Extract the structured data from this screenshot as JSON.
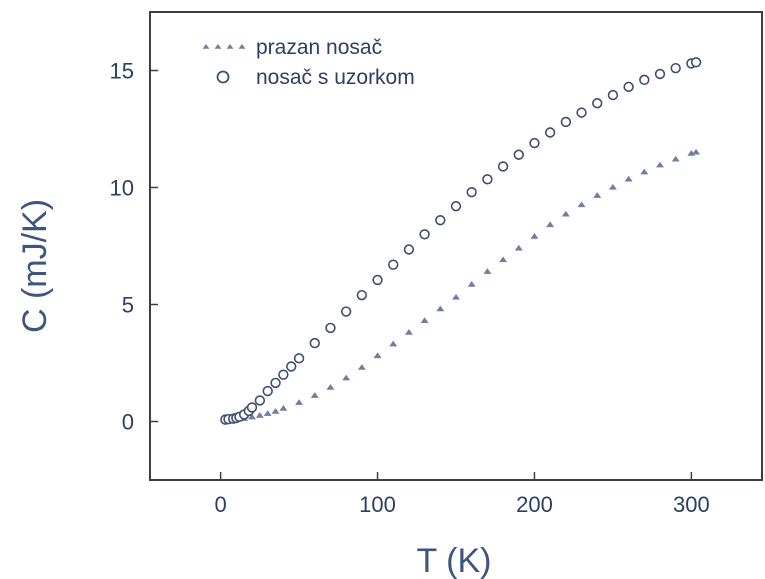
{
  "chart_data": {
    "type": "scatter",
    "xlabel": "T (K)",
    "ylabel": "C (mJ/K)",
    "xlim": [
      -45,
      345
    ],
    "ylim": [
      -2.5,
      17.5
    ],
    "x_ticks": [
      0,
      100,
      200,
      300
    ],
    "y_ticks": [
      0,
      5,
      10,
      15
    ],
    "grid": false,
    "legend_position": "top-left",
    "series": [
      {
        "name": "prazan nosač",
        "marker": "small-triangle",
        "color": "#6f7fa0",
        "x": [
          5,
          10,
          15,
          20,
          25,
          30,
          35,
          40,
          50,
          60,
          70,
          80,
          90,
          100,
          110,
          120,
          130,
          140,
          150,
          160,
          170,
          180,
          190,
          200,
          210,
          220,
          230,
          240,
          250,
          260,
          270,
          280,
          290,
          300,
          303
        ],
        "y": [
          0.05,
          0.08,
          0.12,
          0.18,
          0.25,
          0.33,
          0.42,
          0.55,
          0.8,
          1.1,
          1.45,
          1.85,
          2.3,
          2.8,
          3.3,
          3.8,
          4.3,
          4.8,
          5.3,
          5.85,
          6.4,
          6.9,
          7.4,
          7.9,
          8.4,
          8.85,
          9.25,
          9.65,
          10.0,
          10.35,
          10.65,
          10.95,
          11.2,
          11.45,
          11.5
        ]
      },
      {
        "name": "nosač s uzorkom",
        "marker": "open-circle",
        "color": "#3d4f70",
        "x": [
          3,
          5,
          8,
          10,
          12,
          15,
          18,
          20,
          25,
          30,
          35,
          40,
          45,
          50,
          60,
          70,
          80,
          90,
          100,
          110,
          120,
          130,
          140,
          150,
          160,
          170,
          180,
          190,
          200,
          210,
          220,
          230,
          240,
          250,
          260,
          270,
          280,
          290,
          300,
          303
        ],
        "y": [
          0.08,
          0.1,
          0.12,
          0.15,
          0.2,
          0.3,
          0.45,
          0.6,
          0.9,
          1.3,
          1.65,
          2.0,
          2.35,
          2.7,
          3.35,
          4.0,
          4.7,
          5.4,
          6.05,
          6.7,
          7.35,
          8.0,
          8.6,
          9.2,
          9.8,
          10.35,
          10.9,
          11.4,
          11.9,
          12.35,
          12.8,
          13.2,
          13.6,
          13.95,
          14.3,
          14.6,
          14.85,
          15.1,
          15.3,
          15.35
        ]
      }
    ]
  }
}
